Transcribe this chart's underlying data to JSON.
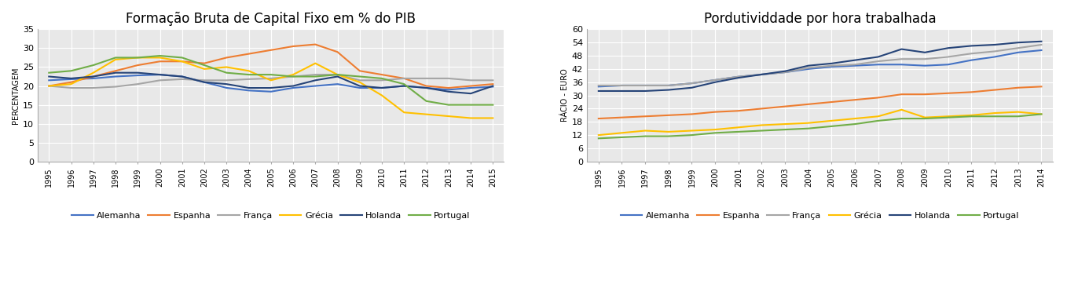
{
  "chart1": {
    "title": "Formação Bruta de Capital Fixo em % do PIB",
    "ylabel": "PERCENTAGEM",
    "years": [
      1995,
      1996,
      1997,
      1998,
      1999,
      2000,
      2001,
      2002,
      2003,
      2004,
      2005,
      2006,
      2007,
      2008,
      2009,
      2010,
      2011,
      2012,
      2013,
      2014,
      2015
    ],
    "ylim": [
      0,
      35
    ],
    "yticks": [
      0,
      5,
      10,
      15,
      20,
      25,
      30,
      35
    ],
    "series": {
      "Alemanha": {
        "color": "#4472C4",
        "data": [
          21.5,
          21.8,
          22.0,
          22.5,
          22.8,
          23.0,
          22.5,
          21.0,
          19.5,
          18.8,
          18.5,
          19.5,
          20.0,
          20.5,
          19.5,
          19.5,
          20.0,
          19.5,
          19.0,
          19.5,
          19.8
        ]
      },
      "Espanha": {
        "color": "#ED7D31",
        "data": [
          20.0,
          21.0,
          22.5,
          24.0,
          25.5,
          26.5,
          26.5,
          26.0,
          27.5,
          28.5,
          29.5,
          30.5,
          31.0,
          29.0,
          24.0,
          23.0,
          22.0,
          20.0,
          19.5,
          20.0,
          20.5
        ]
      },
      "França": {
        "color": "#A5A5A5",
        "data": [
          20.0,
          19.5,
          19.5,
          19.8,
          20.5,
          21.5,
          21.8,
          21.5,
          21.5,
          21.8,
          22.0,
          22.5,
          23.0,
          23.0,
          21.5,
          21.5,
          22.0,
          22.0,
          22.0,
          21.5,
          21.5
        ]
      },
      "Grécia": {
        "color": "#FFC000",
        "data": [
          20.0,
          20.5,
          23.5,
          27.0,
          27.5,
          27.5,
          26.5,
          24.5,
          25.0,
          24.0,
          21.5,
          23.0,
          26.0,
          23.0,
          21.0,
          17.5,
          13.0,
          12.5,
          12.0,
          11.5,
          11.5
        ]
      },
      "Holanda": {
        "color": "#264478",
        "data": [
          22.5,
          22.0,
          22.5,
          23.5,
          23.5,
          23.0,
          22.5,
          21.0,
          20.5,
          19.5,
          19.5,
          20.0,
          21.5,
          22.5,
          20.0,
          19.5,
          20.0,
          19.5,
          18.5,
          18.0,
          20.0
        ]
      },
      "Portugal": {
        "color": "#70AD47",
        "data": [
          23.5,
          24.0,
          25.5,
          27.5,
          27.5,
          28.0,
          27.5,
          25.5,
          23.5,
          23.0,
          23.0,
          22.5,
          22.5,
          23.0,
          22.5,
          22.0,
          20.5,
          16.0,
          15.0,
          15.0,
          15.0
        ]
      }
    }
  },
  "chart2": {
    "title": "Pordutividdade por hora trabalhada",
    "ylabel": "RÁCIO - EURO",
    "years": [
      1995,
      1996,
      1997,
      1998,
      1999,
      2000,
      2001,
      2002,
      2003,
      2004,
      2005,
      2006,
      2007,
      2008,
      2009,
      2010,
      2011,
      2012,
      2013,
      2014
    ],
    "ylim": [
      0,
      60
    ],
    "yticks": [
      0,
      6,
      12,
      18,
      24,
      30,
      36,
      42,
      48,
      54,
      60
    ],
    "series": {
      "Alemanha": {
        "color": "#4472C4",
        "data": [
          34.0,
          34.5,
          34.5,
          34.5,
          35.5,
          37.0,
          38.5,
          39.5,
          40.5,
          42.0,
          43.0,
          43.5,
          44.0,
          44.0,
          43.5,
          44.0,
          46.0,
          47.5,
          49.5,
          50.5
        ]
      },
      "Espanha": {
        "color": "#ED7D31",
        "data": [
          19.5,
          20.0,
          20.5,
          21.0,
          21.5,
          22.5,
          23.0,
          24.0,
          25.0,
          26.0,
          27.0,
          28.0,
          29.0,
          30.5,
          30.5,
          31.0,
          31.5,
          32.5,
          33.5,
          34.0
        ]
      },
      "França": {
        "color": "#A5A5A5",
        "data": [
          34.5,
          34.5,
          34.5,
          34.5,
          35.5,
          37.0,
          38.5,
          39.5,
          40.5,
          42.5,
          43.5,
          44.0,
          45.5,
          46.5,
          46.5,
          47.5,
          49.0,
          50.0,
          51.5,
          53.0
        ]
      },
      "Grécia": {
        "color": "#FFC000",
        "data": [
          12.0,
          13.0,
          14.0,
          13.5,
          14.0,
          14.5,
          15.5,
          16.5,
          17.0,
          17.5,
          18.5,
          19.5,
          20.5,
          23.5,
          20.0,
          20.5,
          21.0,
          22.0,
          22.5,
          21.5
        ]
      },
      "Holanda": {
        "color": "#264478",
        "data": [
          32.0,
          32.0,
          32.0,
          32.5,
          33.5,
          36.0,
          38.0,
          39.5,
          41.0,
          43.5,
          44.5,
          46.0,
          47.5,
          51.0,
          49.5,
          51.5,
          52.5,
          53.0,
          54.0,
          54.5
        ]
      },
      "Portugal": {
        "color": "#70AD47",
        "data": [
          10.5,
          11.0,
          11.5,
          11.5,
          12.0,
          13.0,
          13.5,
          14.0,
          14.5,
          15.0,
          16.0,
          17.0,
          18.5,
          19.5,
          19.5,
          20.0,
          20.5,
          20.5,
          20.5,
          21.5
        ]
      }
    }
  },
  "legend_order": [
    "Alemanha",
    "Espanha",
    "França",
    "Grécia",
    "Holanda",
    "Portugal"
  ],
  "fig_bg_color": "#FFFFFF",
  "plot_bg_color": "#E8E8E8"
}
